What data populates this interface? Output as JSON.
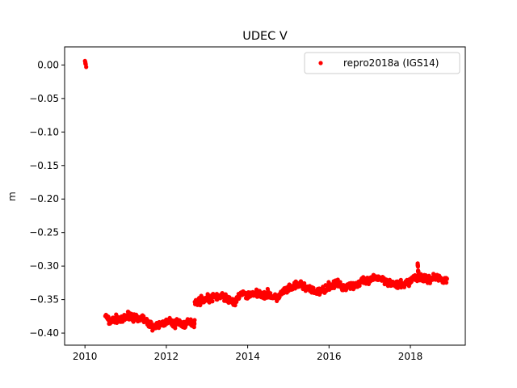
{
  "chart_data": {
    "type": "scatter",
    "title": "UDEC V",
    "xlabel": "",
    "ylabel": "m",
    "xlim": [
      2009.5,
      2019.35
    ],
    "ylim": [
      -0.418,
      0.027
    ],
    "xticks": [
      2010,
      2012,
      2014,
      2016,
      2018
    ],
    "yticks": [
      0.0,
      -0.05,
      -0.1,
      -0.15,
      -0.2,
      -0.25,
      -0.3,
      -0.35,
      -0.4
    ],
    "ytick_labels": [
      "0.00",
      "−0.05",
      "−0.10",
      "−0.15",
      "−0.20",
      "−0.25",
      "−0.30",
      "−0.35",
      "−0.40"
    ],
    "grid": false,
    "legend": {
      "position": "upper-right",
      "entries": [
        "repro2018a (IGS14)"
      ]
    },
    "series": [
      {
        "name": "repro2018a (IGS14)",
        "color": "#ff0000",
        "marker": "dot",
        "points": [
          [
            2010.0,
            0.006
          ],
          [
            2010.01,
            0.004
          ],
          [
            2010.02,
            0.001
          ],
          [
            2010.03,
            -0.003
          ],
          [
            2010.01,
            0.002
          ],
          [
            2010.5,
            -0.373
          ],
          [
            2010.6,
            -0.383
          ],
          [
            2010.7,
            -0.38
          ],
          [
            2010.8,
            -0.378
          ],
          [
            2010.9,
            -0.382
          ],
          [
            2011.0,
            -0.376
          ],
          [
            2011.1,
            -0.372
          ],
          [
            2011.2,
            -0.377
          ],
          [
            2011.3,
            -0.381
          ],
          [
            2011.4,
            -0.376
          ],
          [
            2011.5,
            -0.383
          ],
          [
            2011.6,
            -0.387
          ],
          [
            2011.7,
            -0.391
          ],
          [
            2011.8,
            -0.389
          ],
          [
            2011.9,
            -0.385
          ],
          [
            2012.0,
            -0.384
          ],
          [
            2012.1,
            -0.383
          ],
          [
            2012.2,
            -0.387
          ],
          [
            2012.3,
            -0.383
          ],
          [
            2012.4,
            -0.388
          ],
          [
            2012.5,
            -0.386
          ],
          [
            2012.6,
            -0.384
          ],
          [
            2012.65,
            -0.385
          ],
          [
            2012.7,
            -0.355
          ],
          [
            2012.8,
            -0.352
          ],
          [
            2012.9,
            -0.35
          ],
          [
            2013.0,
            -0.348
          ],
          [
            2013.1,
            -0.349
          ],
          [
            2013.2,
            -0.345
          ],
          [
            2013.3,
            -0.346
          ],
          [
            2013.4,
            -0.344
          ],
          [
            2013.5,
            -0.35
          ],
          [
            2013.6,
            -0.351
          ],
          [
            2013.7,
            -0.356
          ],
          [
            2013.8,
            -0.342
          ],
          [
            2013.9,
            -0.341
          ],
          [
            2014.0,
            -0.345
          ],
          [
            2014.1,
            -0.34
          ],
          [
            2014.2,
            -0.342
          ],
          [
            2014.3,
            -0.339
          ],
          [
            2014.4,
            -0.344
          ],
          [
            2014.5,
            -0.341
          ],
          [
            2014.6,
            -0.345
          ],
          [
            2014.7,
            -0.349
          ],
          [
            2014.8,
            -0.343
          ],
          [
            2014.9,
            -0.337
          ],
          [
            2015.0,
            -0.335
          ],
          [
            2015.1,
            -0.332
          ],
          [
            2015.2,
            -0.329
          ],
          [
            2015.3,
            -0.327
          ],
          [
            2015.4,
            -0.331
          ],
          [
            2015.5,
            -0.334
          ],
          [
            2015.6,
            -0.337
          ],
          [
            2015.7,
            -0.339
          ],
          [
            2015.8,
            -0.338
          ],
          [
            2015.9,
            -0.334
          ],
          [
            2016.0,
            -0.33
          ],
          [
            2016.1,
            -0.328
          ],
          [
            2016.2,
            -0.326
          ],
          [
            2016.3,
            -0.33
          ],
          [
            2016.4,
            -0.331
          ],
          [
            2016.5,
            -0.328
          ],
          [
            2016.6,
            -0.329
          ],
          [
            2016.7,
            -0.327
          ],
          [
            2016.8,
            -0.323
          ],
          [
            2016.9,
            -0.324
          ],
          [
            2017.0,
            -0.322
          ],
          [
            2017.1,
            -0.318
          ],
          [
            2017.2,
            -0.317
          ],
          [
            2017.3,
            -0.319
          ],
          [
            2017.4,
            -0.322
          ],
          [
            2017.5,
            -0.325
          ],
          [
            2017.6,
            -0.327
          ],
          [
            2017.7,
            -0.329
          ],
          [
            2017.8,
            -0.328
          ],
          [
            2017.9,
            -0.326
          ],
          [
            2018.0,
            -0.322
          ],
          [
            2018.1,
            -0.317
          ],
          [
            2018.18,
            -0.296
          ],
          [
            2018.2,
            -0.315
          ],
          [
            2018.3,
            -0.318
          ],
          [
            2018.4,
            -0.32
          ],
          [
            2018.5,
            -0.319
          ],
          [
            2018.6,
            -0.316
          ],
          [
            2018.7,
            -0.318
          ],
          [
            2018.8,
            -0.32
          ],
          [
            2018.9,
            -0.319
          ]
        ]
      }
    ]
  }
}
